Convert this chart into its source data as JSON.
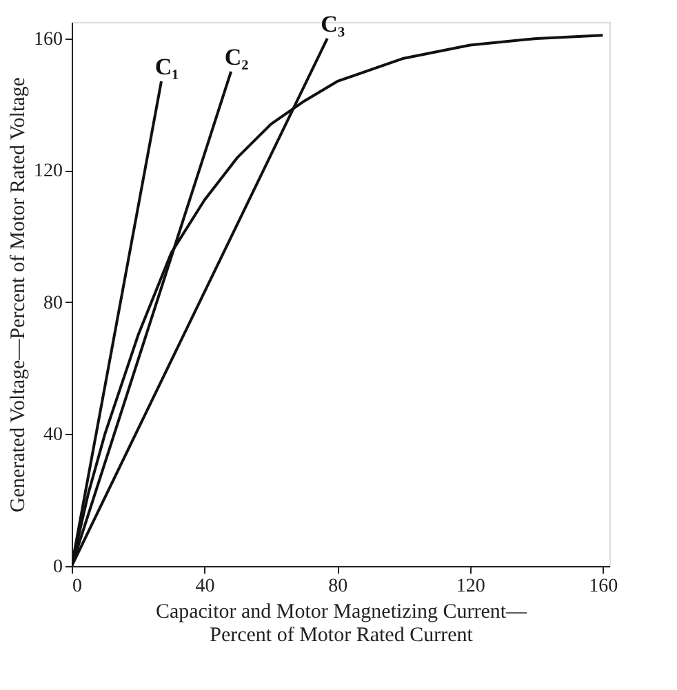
{
  "chart_data": {
    "type": "line",
    "xlabel": "Capacitor and Motor Magnetizing Current—\nPercent of Motor Rated Current",
    "ylabel": "Generated Voltage—Percent of Motor Rated Voltage",
    "xlim": [
      0,
      162
    ],
    "ylim": [
      0,
      165
    ],
    "xticks": [
      0,
      40,
      80,
      120,
      160
    ],
    "yticks": [
      0,
      40,
      80,
      120,
      160
    ],
    "grid": false,
    "legend": false,
    "marker": "none",
    "line_style": "solid",
    "series": [
      {
        "color": "#111111",
        "x": [
          0,
          5,
          10,
          20,
          30,
          40,
          50,
          60,
          70,
          80,
          100,
          120,
          140,
          160
        ],
        "values": [
          0,
          22,
          40,
          70,
          95,
          111,
          124,
          134,
          141,
          147,
          154,
          158,
          160,
          161
        ]
      },
      {
        "name": "C₁",
        "color": "#111111",
        "x": [
          0,
          27
        ],
        "values": [
          0,
          147
        ]
      },
      {
        "name": "C₂",
        "color": "#111111",
        "x": [
          0,
          48
        ],
        "values": [
          0,
          150
        ]
      },
      {
        "name": "C₃",
        "color": "#111111",
        "x": [
          0,
          77
        ],
        "values": [
          0,
          160
        ]
      }
    ]
  }
}
